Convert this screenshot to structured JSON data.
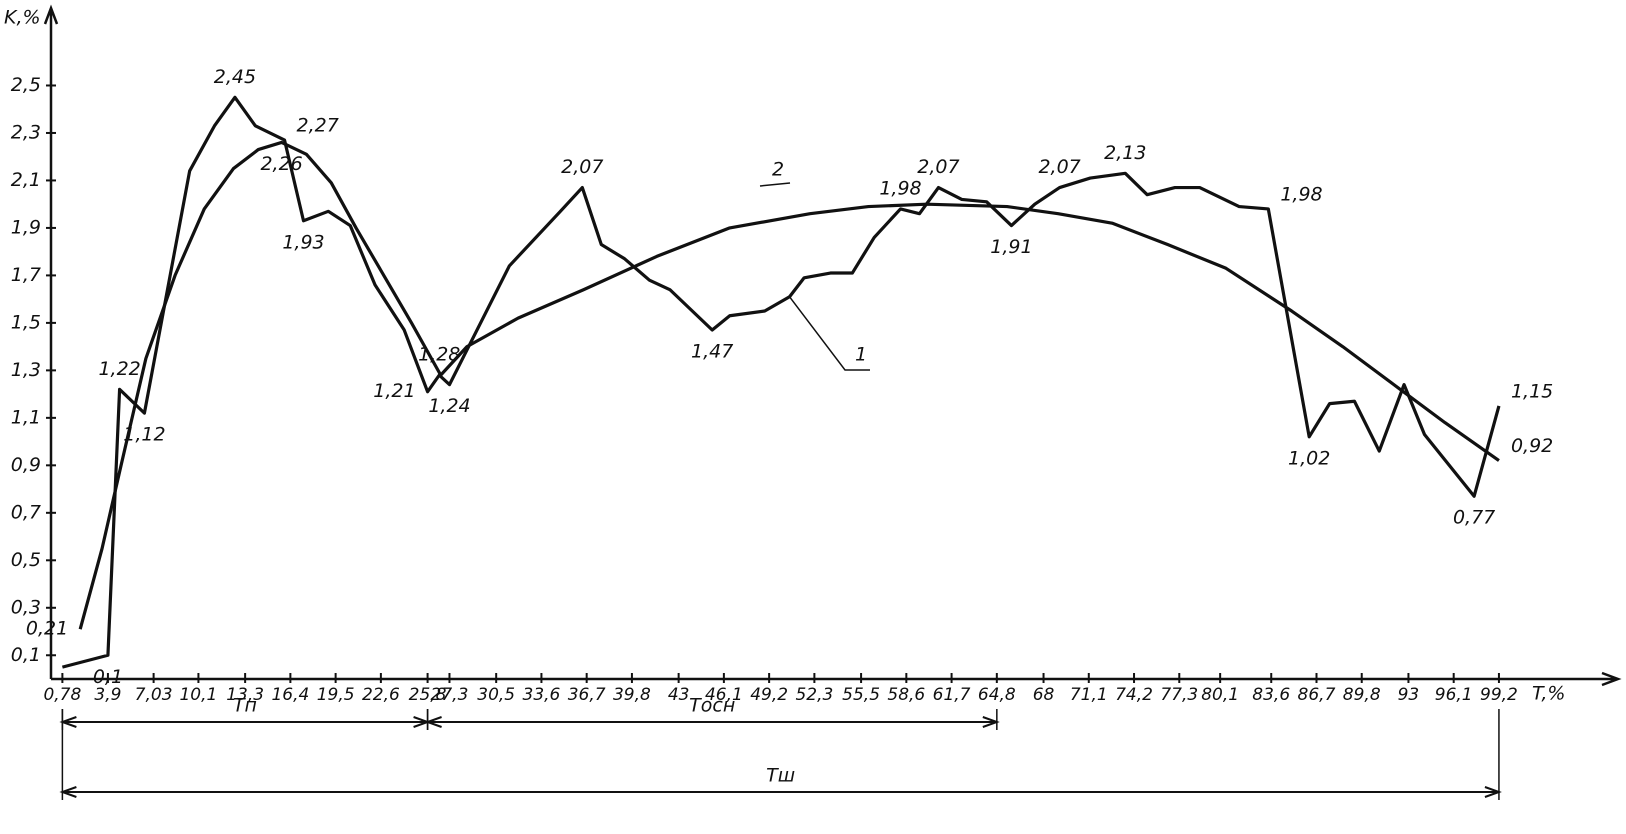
{
  "chart_data": {
    "type": "line",
    "y_label": "K,%",
    "x_label": "T,%",
    "xlim": [
      0,
      104
    ],
    "ylim": [
      0,
      2.7
    ],
    "xticks": [
      {
        "value": 0.78,
        "label": "0,78"
      },
      {
        "value": 3.9,
        "label": "3,9"
      },
      {
        "value": 7.03,
        "label": "7,03"
      },
      {
        "value": 10.1,
        "label": "10,1"
      },
      {
        "value": 13.3,
        "label": "13,3"
      },
      {
        "value": 16.4,
        "label": "16,4"
      },
      {
        "value": 19.5,
        "label": "19,5"
      },
      {
        "value": 22.6,
        "label": "22,6"
      },
      {
        "value": 25.8,
        "label": "25,8"
      },
      {
        "value": 27.3,
        "label": "27,3"
      },
      {
        "value": 30.5,
        "label": "30,5"
      },
      {
        "value": 33.6,
        "label": "33,6"
      },
      {
        "value": 36.7,
        "label": "36,7"
      },
      {
        "value": 39.8,
        "label": "39,8"
      },
      43,
      {
        "value": 46.1,
        "label": "46,1"
      },
      {
        "value": 49.2,
        "label": "49,2"
      },
      {
        "value": 52.3,
        "label": "52,3"
      },
      {
        "value": 55.5,
        "label": "55,5"
      },
      {
        "value": 58.6,
        "label": "58,6"
      },
      {
        "value": 61.7,
        "label": "61,7"
      },
      {
        "value": 64.8,
        "label": "64,8"
      },
      68,
      {
        "value": 71.1,
        "label": "71,1"
      },
      {
        "value": 74.2,
        "label": "74,2"
      },
      {
        "value": 77.3,
        "label": "77,3"
      },
      {
        "value": 80.1,
        "label": "80,1"
      },
      {
        "value": 83.6,
        "label": "83,6"
      },
      {
        "value": 86.7,
        "label": "86,7"
      },
      {
        "value": 89.8,
        "label": "89,8"
      },
      93,
      {
        "value": 96.1,
        "label": "96,1"
      },
      {
        "value": 99.2,
        "label": "99,2"
      }
    ],
    "yticks": [
      {
        "value": 0.1,
        "label": "0,1"
      },
      {
        "value": 0.3,
        "label": "0,3"
      },
      {
        "value": 0.5,
        "label": "0,5"
      },
      {
        "value": 0.7,
        "label": "0,7"
      },
      {
        "value": 0.9,
        "label": "0,9"
      },
      {
        "value": 1.1,
        "label": "1,1"
      },
      {
        "value": 1.3,
        "label": "1,3"
      },
      {
        "value": 1.5,
        "label": "1,5"
      },
      {
        "value": 1.7,
        "label": "1,7"
      },
      {
        "value": 1.9,
        "label": "1,9"
      },
      {
        "value": 2.1,
        "label": "2,1"
      },
      {
        "value": 2.3,
        "label": "2,3"
      },
      {
        "value": 2.5,
        "label": "2,5"
      }
    ],
    "series": [
      {
        "name": "1",
        "color": "#111111",
        "x": [
          0.78,
          3.9,
          4.7,
          6.4,
          9.5,
          11.2,
          12.6,
          14,
          16,
          17.3,
          19,
          20.5,
          22.2,
          24.2,
          25.8,
          26.6,
          27.3,
          31.4,
          34.9,
          36.4,
          37.7,
          39.3,
          41,
          42.4,
          45.3,
          46.5,
          48.9,
          50.6,
          51.6,
          53.4,
          54.9,
          56.4,
          58.2,
          59.5,
          60.8,
          62.4,
          64.1,
          65.8,
          67.4,
          69.1,
          71.2,
          73.6,
          75.1,
          77,
          78.7,
          81.4,
          83.4,
          86.2,
          87.6,
          89.3,
          91,
          92.7,
          94.1,
          97.5,
          99.2
        ],
        "values": [
          0.05,
          0.1,
          1.22,
          1.12,
          2.14,
          2.33,
          2.45,
          2.33,
          2.27,
          1.93,
          1.97,
          1.91,
          1.66,
          1.47,
          1.21,
          1.28,
          1.24,
          1.74,
          1.97,
          2.07,
          1.83,
          1.77,
          1.68,
          1.64,
          1.47,
          1.53,
          1.55,
          1.61,
          1.69,
          1.71,
          1.71,
          1.86,
          1.98,
          1.96,
          2.07,
          2.02,
          2.01,
          1.91,
          2.0,
          2.07,
          2.11,
          2.13,
          2.04,
          2.07,
          2.07,
          1.99,
          1.98,
          1.02,
          1.16,
          1.17,
          0.96,
          1.24,
          1.03,
          0.77,
          1.15
        ]
      },
      {
        "name": "2",
        "color": "#111111",
        "x": [
          2.0,
          3.5,
          4.8,
          6.5,
          8.5,
          10.5,
          12.5,
          14.2,
          15.8,
          17.5,
          19.2,
          20.9,
          22.8,
          24.7,
          26.7,
          28.5,
          32,
          36.5,
          41.5,
          46.5,
          52,
          56,
          60,
          65.5,
          69,
          72.7,
          76.5,
          80.5,
          85,
          88.5,
          92,
          95.5,
          99.2
        ],
        "values": [
          0.21,
          0.55,
          0.9,
          1.35,
          1.7,
          1.98,
          2.15,
          2.23,
          2.26,
          2.21,
          2.09,
          1.9,
          1.7,
          1.5,
          1.28,
          1.4,
          1.52,
          1.64,
          1.78,
          1.9,
          1.96,
          1.99,
          2.0,
          1.99,
          1.96,
          1.92,
          1.83,
          1.73,
          1.55,
          1.4,
          1.24,
          1.08,
          0.92
        ]
      }
    ],
    "annotations": [
      {
        "text": "0,1",
        "x": 3.9,
        "y": 0.1,
        "pos": "below"
      },
      {
        "text": "1,22",
        "x": 4.7,
        "y": 1.22,
        "pos": "above"
      },
      {
        "text": "1,12",
        "x": 6.4,
        "y": 1.12,
        "pos": "below"
      },
      {
        "text": "2,45",
        "x": 12.6,
        "y": 2.45,
        "pos": "above"
      },
      {
        "text": "2,27",
        "x": 16,
        "y": 2.27,
        "pos": "right"
      },
      {
        "text": "1,93",
        "x": 17.3,
        "y": 1.93,
        "pos": "below"
      },
      {
        "text": "1,21",
        "x": 25.8,
        "y": 1.21,
        "pos": "left"
      },
      {
        "text": "1,28",
        "x": 26.6,
        "y": 1.28,
        "pos": "above"
      },
      {
        "text": "1,24",
        "x": 27.3,
        "y": 1.24,
        "pos": "below"
      },
      {
        "text": "2,07",
        "x": 36.4,
        "y": 2.07,
        "pos": "above"
      },
      {
        "text": "1,47",
        "x": 45.3,
        "y": 1.47,
        "pos": "below"
      },
      {
        "text": "1,98",
        "x": 58.2,
        "y": 1.98,
        "pos": "above"
      },
      {
        "text": "2,07",
        "x": 60.8,
        "y": 2.07,
        "pos": "above"
      },
      {
        "text": "1,91",
        "x": 65.8,
        "y": 1.91,
        "pos": "below"
      },
      {
        "text": "2,07",
        "x": 69.1,
        "y": 2.07,
        "pos": "above"
      },
      {
        "text": "2,13",
        "x": 73.6,
        "y": 2.13,
        "pos": "above"
      },
      {
        "text": "1,98",
        "x": 83.4,
        "y": 1.98,
        "pos": "right"
      },
      {
        "text": "1,02",
        "x": 86.2,
        "y": 1.02,
        "pos": "below"
      },
      {
        "text": "0,77",
        "x": 97.5,
        "y": 0.77,
        "pos": "below"
      },
      {
        "text": "1,15",
        "x": 99.2,
        "y": 1.15,
        "pos": "right"
      },
      {
        "text": "0,21",
        "x": 2.0,
        "y": 0.21,
        "pos": "left"
      },
      {
        "text": "2,26",
        "x": 15.8,
        "y": 2.26,
        "pos": "below"
      },
      {
        "text": "0,92",
        "x": 99.2,
        "y": 0.92,
        "pos": "right"
      }
    ],
    "spans": [
      {
        "label": "Tп",
        "from": 0.78,
        "to": 25.8
      },
      {
        "label": "Tосн",
        "from": 25.8,
        "to": 64.8
      },
      {
        "label": "Tш",
        "from": 0.78,
        "to": 99.2
      }
    ]
  }
}
